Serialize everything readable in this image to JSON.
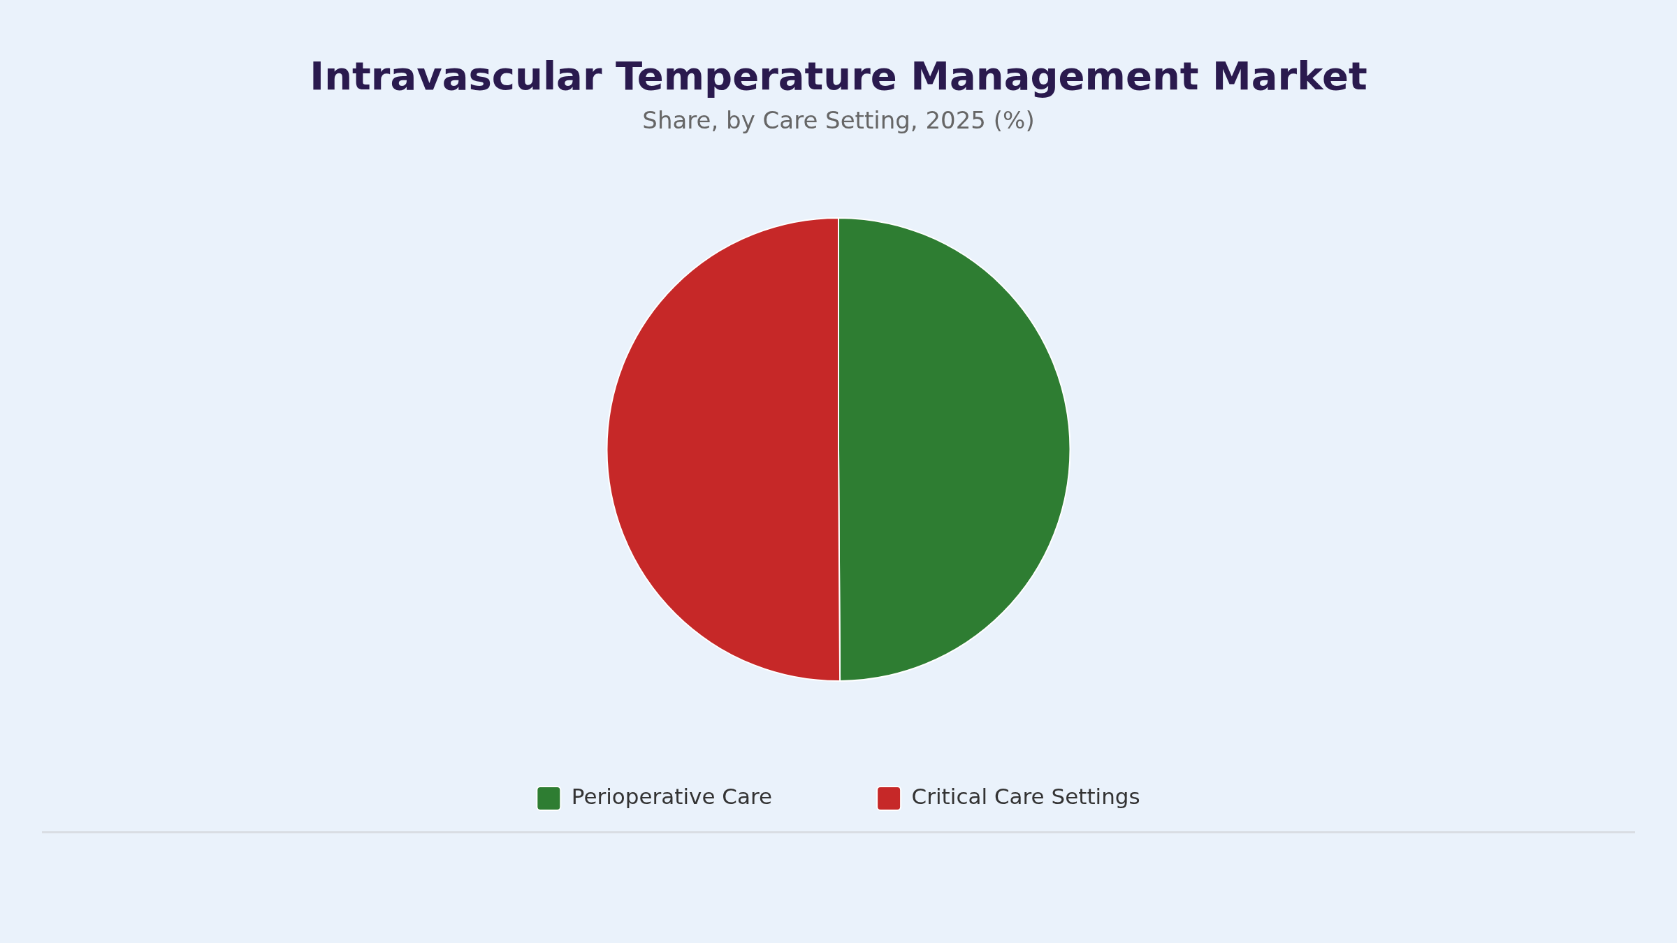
{
  "chart_data": {
    "type": "pie",
    "title": "Intravascular Temperature Management Market",
    "subtitle": "Share, by Care Setting, 2025 (%)",
    "categories": [
      "Perioperative Care",
      "Critical Care Settings"
    ],
    "values": [
      49.9,
      50.1
    ],
    "colors": [
      "#2e7d32",
      "#c62828"
    ],
    "legend": "bottom"
  }
}
